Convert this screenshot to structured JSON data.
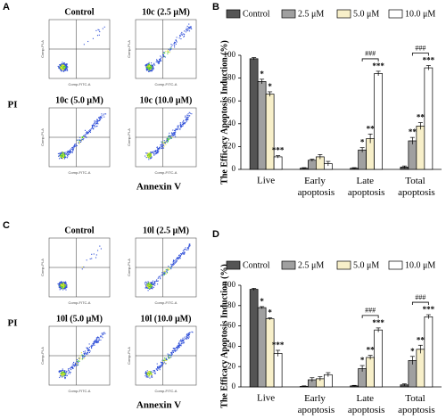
{
  "flow_panels": [
    {
      "panel_label": "A",
      "y_label": "PI",
      "x_label": "Annexin V",
      "plot_x_label": "Comp-FITC-A",
      "plot_y_label": "Comp-PI-A",
      "titles": [
        "Control",
        "10c (2.5 μM)",
        "10c (5.0 μM)",
        "10c (10.0 μM)"
      ]
    },
    {
      "panel_label": "C",
      "y_label": "PI",
      "x_label": "Annexin V",
      "plot_x_label": "Comp-FITC-A",
      "plot_y_label": "Comp-PI-A",
      "titles": [
        "Control",
        "10l (2.5 μM)",
        "10l (5.0 μM)",
        "10l (10.0 μM)"
      ]
    }
  ],
  "chart_data": [
    {
      "type": "bar",
      "panel_label": "B",
      "y_label": "The Efficacy Apoptosis Induction (%)",
      "categories": [
        "Live",
        "Early apoptosis",
        "Late apoptosis",
        "Total apoptosis"
      ],
      "ylim": [
        0,
        100
      ],
      "yticks": [
        0,
        20,
        40,
        60,
        80,
        100
      ],
      "bracket_labels": [
        null,
        null,
        "###",
        "###"
      ],
      "series": [
        {
          "name": "Control",
          "color": "#555555",
          "values": [
            97,
            1,
            1,
            2
          ],
          "errors": [
            1,
            0.5,
            0.5,
            1
          ],
          "stars": [
            null,
            null,
            null,
            null
          ]
        },
        {
          "name": "2.5 μM",
          "color": "#a0a0a0",
          "values": [
            77,
            8,
            17,
            25
          ],
          "errors": [
            2,
            1,
            2,
            3
          ],
          "stars": [
            "*",
            null,
            "*",
            "**"
          ]
        },
        {
          "name": "5.0 μM",
          "color": "#f7efc9",
          "values": [
            66,
            11,
            27,
            38
          ],
          "errors": [
            2,
            2,
            4,
            3
          ],
          "stars": [
            "*",
            null,
            "**",
            "**"
          ]
        },
        {
          "name": "10.0 μM",
          "color": "#ffffff",
          "values": [
            11,
            5,
            84,
            89
          ],
          "errors": [
            1,
            2,
            2,
            2
          ],
          "stars": [
            "***",
            null,
            "***",
            "***"
          ]
        }
      ]
    },
    {
      "type": "bar",
      "panel_label": "D",
      "y_label": "The Efficacy Apoptosis Induction (%)",
      "categories": [
        "Live",
        "Early apoptosis",
        "Late apoptosis",
        "Total apoptosis"
      ],
      "ylim": [
        0,
        100
      ],
      "yticks": [
        0,
        20,
        40,
        60,
        80,
        100
      ],
      "bracket_labels": [
        null,
        null,
        "###",
        "###"
      ],
      "series": [
        {
          "name": "Control",
          "color": "#555555",
          "values": [
            96,
            0.5,
            1,
            2
          ],
          "errors": [
            1,
            0.5,
            0.5,
            1
          ],
          "stars": [
            null,
            null,
            null,
            null
          ]
        },
        {
          "name": "2.5 μM",
          "color": "#a0a0a0",
          "values": [
            78,
            7,
            18,
            26
          ],
          "errors": [
            1,
            2,
            3,
            4
          ],
          "stars": [
            "*",
            null,
            "*",
            "*"
          ]
        },
        {
          "name": "5.0 μM",
          "color": "#f7efc9",
          "values": [
            67,
            8,
            29,
            37
          ],
          "errors": [
            1,
            2,
            2,
            4
          ],
          "stars": [
            "*",
            null,
            "**",
            "**"
          ]
        },
        {
          "name": "10.0 μM",
          "color": "#ffffff",
          "values": [
            33,
            12,
            56,
            69
          ],
          "errors": [
            3,
            2,
            2,
            2
          ],
          "stars": [
            "***",
            null,
            "***",
            "***"
          ]
        }
      ]
    }
  ]
}
